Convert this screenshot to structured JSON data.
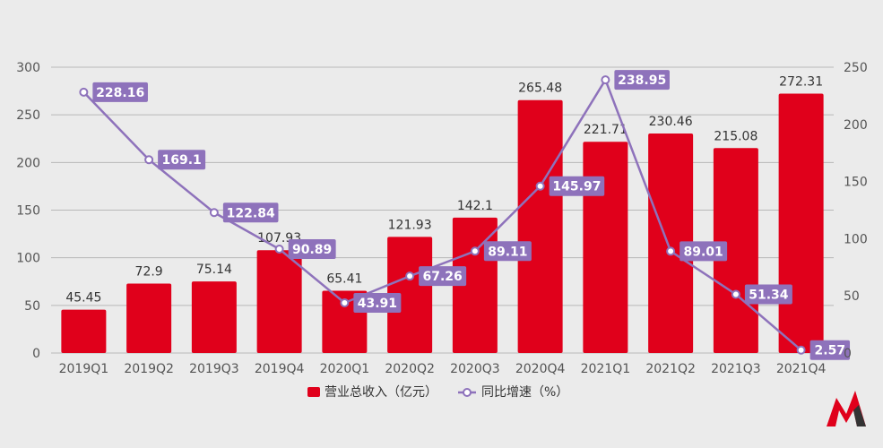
{
  "chart_data": {
    "type": "bar",
    "categories": [
      "2019Q1",
      "2019Q2",
      "2019Q3",
      "2019Q4",
      "2020Q1",
      "2020Q2",
      "2020Q3",
      "2020Q4",
      "2021Q1",
      "2021Q2",
      "2021Q3",
      "2021Q4"
    ],
    "series": [
      {
        "name": "营业总收入（亿元）",
        "type": "bar",
        "axis": "left",
        "color": "#e0001b",
        "values": [
          45.45,
          72.9,
          75.14,
          107.93,
          65.41,
          121.93,
          142.1,
          265.48,
          221.71,
          230.46,
          215.08,
          272.31
        ]
      },
      {
        "name": "同比增速（%）",
        "type": "line",
        "axis": "right",
        "color": "#8e72bb",
        "values": [
          228.16,
          169.1,
          122.84,
          90.89,
          43.91,
          67.26,
          89.11,
          145.97,
          238.95,
          89.01,
          51.34,
          2.57
        ]
      }
    ],
    "ylim": [
      0,
      300
    ],
    "yticks": [
      0,
      50,
      100,
      150,
      200,
      250,
      300
    ],
    "y2lim": [
      0,
      250
    ],
    "y2ticks": [
      0,
      50,
      100,
      150,
      200,
      250
    ],
    "grid": true,
    "legend": "bottom-center"
  }
}
